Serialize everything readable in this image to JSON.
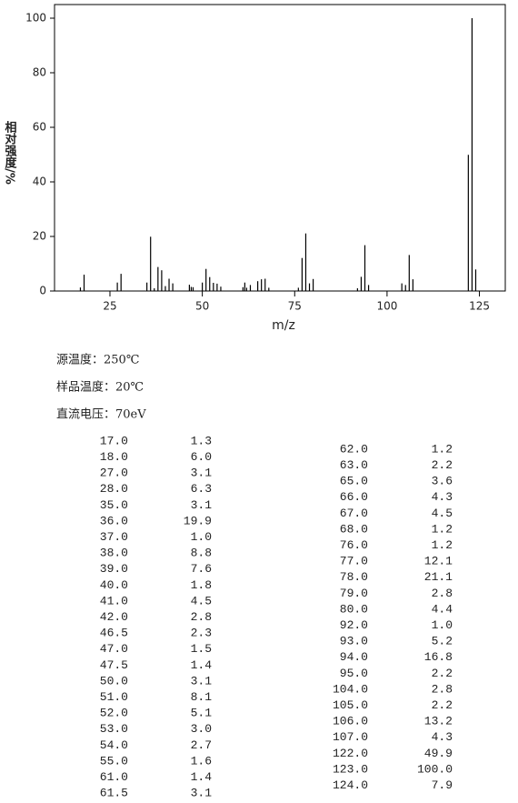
{
  "chart_data": {
    "type": "stick",
    "x_label": "m/z",
    "y_label": "相对强度/%",
    "x": [
      17.0,
      18.0,
      27.0,
      28.0,
      35.0,
      36.0,
      37.0,
      38.0,
      39.0,
      40.0,
      41.0,
      42.0,
      46.5,
      47.0,
      47.5,
      50.0,
      51.0,
      52.0,
      53.0,
      54.0,
      55.0,
      61.0,
      61.5,
      62.0,
      63.0,
      65.0,
      66.0,
      67.0,
      68.0,
      76.0,
      77.0,
      78.0,
      79.0,
      80.0,
      92.0,
      93.0,
      94.0,
      95.0,
      104.0,
      105.0,
      106.0,
      107.0,
      122.0,
      123.0,
      124.0
    ],
    "values": [
      1.3,
      6.0,
      3.1,
      6.3,
      3.1,
      19.9,
      1.0,
      8.8,
      7.6,
      1.8,
      4.5,
      2.8,
      2.3,
      1.5,
      1.4,
      3.1,
      8.1,
      5.1,
      3.0,
      2.7,
      1.6,
      1.4,
      3.1,
      1.2,
      2.2,
      3.6,
      4.3,
      4.5,
      1.2,
      1.2,
      12.1,
      21.1,
      2.8,
      4.4,
      1.0,
      5.2,
      16.8,
      2.2,
      2.8,
      2.2,
      13.2,
      4.3,
      49.9,
      100.0,
      7.9
    ],
    "color": "#000000",
    "xlim": [
      10,
      132
    ],
    "xticks": [
      25,
      50,
      75,
      100,
      125
    ],
    "ylim": [
      0,
      105
    ],
    "yticks": [
      0,
      20,
      40,
      60,
      80,
      100
    ]
  },
  "conditions": [
    "源温度：250℃",
    "样品温度：20℃",
    "直流电压：70eV"
  ],
  "table": {
    "columns": [
      {
        "rows": [
          [
            "17.0",
            "1.3"
          ],
          [
            "18.0",
            "6.0"
          ],
          [
            "27.0",
            "3.1"
          ],
          [
            "28.0",
            "6.3"
          ],
          [
            "35.0",
            "3.1"
          ],
          [
            "36.0",
            "19.9"
          ],
          [
            "37.0",
            "1.0"
          ],
          [
            "38.0",
            "8.8"
          ],
          [
            "39.0",
            "7.6"
          ],
          [
            "40.0",
            "1.8"
          ],
          [
            "41.0",
            "4.5"
          ],
          [
            "42.0",
            "2.8"
          ],
          [
            "46.5",
            "2.3"
          ],
          [
            "47.0",
            "1.5"
          ],
          [
            "47.5",
            "1.4"
          ],
          [
            "50.0",
            "3.1"
          ],
          [
            "51.0",
            "8.1"
          ],
          [
            "52.0",
            "5.1"
          ],
          [
            "53.0",
            "3.0"
          ],
          [
            "54.0",
            "2.7"
          ],
          [
            "55.0",
            "1.6"
          ],
          [
            "61.0",
            "1.4"
          ],
          [
            "61.5",
            "3.1"
          ]
        ]
      },
      {
        "rows": [
          [
            "62.0",
            "1.2"
          ],
          [
            "63.0",
            "2.2"
          ],
          [
            "65.0",
            "3.6"
          ],
          [
            "66.0",
            "4.3"
          ],
          [
            "67.0",
            "4.5"
          ],
          [
            "68.0",
            "1.2"
          ],
          [
            "76.0",
            "1.2"
          ],
          [
            "77.0",
            "12.1"
          ],
          [
            "78.0",
            "21.1"
          ],
          [
            "79.0",
            "2.8"
          ],
          [
            "80.0",
            "4.4"
          ],
          [
            "92.0",
            "1.0"
          ],
          [
            "93.0",
            "5.2"
          ],
          [
            "94.0",
            "16.8"
          ],
          [
            "95.0",
            "2.2"
          ],
          [
            "104.0",
            "2.8"
          ],
          [
            "105.0",
            "2.2"
          ],
          [
            "106.0",
            "13.2"
          ],
          [
            "107.0",
            "4.3"
          ],
          [
            "122.0",
            "49.9"
          ],
          [
            "123.0",
            "100.0"
          ],
          [
            "124.0",
            "7.9"
          ]
        ]
      }
    ]
  }
}
